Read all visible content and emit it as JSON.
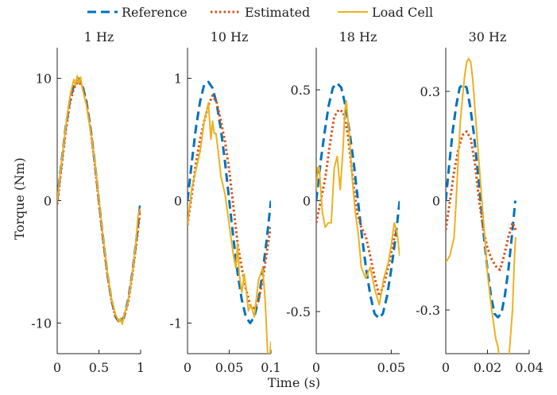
{
  "figure": {
    "ylabel": "Torque (Nm)",
    "xlabel": "Time (s)"
  },
  "legend": {
    "placement": "top-center",
    "entries": [
      {
        "label": "Reference",
        "color": "#0072BD",
        "style": "dashed"
      },
      {
        "label": "Estimated",
        "color": "#D95319",
        "style": "dotted"
      },
      {
        "label": "Load Cell",
        "color": "#EDB120",
        "style": "solid"
      }
    ]
  },
  "chart_data": [
    {
      "type": "line",
      "title": "1 Hz",
      "xlim": [
        0,
        1
      ],
      "ylim": [
        -12.5,
        12.5
      ],
      "xticks": [
        0,
        0.5,
        1
      ],
      "xtick_labels": [
        "0",
        "0.5",
        "1"
      ],
      "yticks": [
        -10,
        0,
        10
      ],
      "ytick_labels": [
        "-10",
        "0",
        "10"
      ],
      "series": [
        {
          "name": "Reference",
          "x": [
            0,
            0.05,
            0.1,
            0.15,
            0.2,
            0.25,
            0.3,
            0.35,
            0.4,
            0.45,
            0.5,
            0.55,
            0.6,
            0.65,
            0.7,
            0.75,
            0.8,
            0.85,
            0.9,
            0.95,
            1.0
          ],
          "y": [
            0,
            3.1,
            5.9,
            8.1,
            9.5,
            10.0,
            9.5,
            8.1,
            5.9,
            3.1,
            0,
            -3.1,
            -5.9,
            -8.1,
            -9.5,
            -10.0,
            -9.5,
            -8.1,
            -5.9,
            -3.1,
            0
          ]
        },
        {
          "name": "Estimated",
          "x": [
            0,
            0.05,
            0.1,
            0.15,
            0.2,
            0.25,
            0.3,
            0.35,
            0.4,
            0.45,
            0.5,
            0.55,
            0.6,
            0.65,
            0.7,
            0.75,
            0.8,
            0.85,
            0.9,
            0.95,
            1.0
          ],
          "y": [
            -0.3,
            2.7,
            5.6,
            7.9,
            9.2,
            9.7,
            9.4,
            8.0,
            5.8,
            3.0,
            -0.2,
            -3.3,
            -6.0,
            -8.2,
            -9.5,
            -9.9,
            -9.6,
            -8.3,
            -6.1,
            -3.4,
            -0.5
          ]
        },
        {
          "name": "Load Cell",
          "x": [
            0,
            0.04,
            0.08,
            0.12,
            0.16,
            0.2,
            0.22,
            0.24,
            0.26,
            0.28,
            0.3,
            0.35,
            0.4,
            0.45,
            0.5,
            0.55,
            0.6,
            0.65,
            0.7,
            0.74,
            0.76,
            0.78,
            0.8,
            0.85,
            0.9,
            0.94,
            0.97,
            1.0
          ],
          "y": [
            0,
            2.5,
            4.8,
            7.0,
            8.8,
            9.9,
            9.4,
            10.2,
            9.6,
            10.1,
            9.2,
            7.8,
            5.7,
            3.2,
            0.1,
            -3.0,
            -5.8,
            -8.0,
            -9.3,
            -9.9,
            -9.6,
            -10.1,
            -9.4,
            -8.2,
            -6.0,
            -3.6,
            -1.2,
            -0.6
          ]
        }
      ]
    },
    {
      "type": "line",
      "title": "10 Hz",
      "xlim": [
        0,
        0.1
      ],
      "ylim": [
        -1.25,
        1.25
      ],
      "xticks": [
        0,
        0.05,
        0.1
      ],
      "xtick_labels": [
        "0",
        "0.05",
        "0.1"
      ],
      "yticks": [
        -1,
        0,
        1
      ],
      "ytick_labels": [
        "-1",
        "0",
        "1"
      ],
      "series": [
        {
          "name": "Reference",
          "x": [
            0,
            0.005,
            0.01,
            0.015,
            0.02,
            0.025,
            0.03,
            0.035,
            0.04,
            0.045,
            0.05,
            0.055,
            0.06,
            0.065,
            0.07,
            0.075,
            0.08,
            0.085,
            0.09,
            0.095,
            0.1
          ],
          "y": [
            0,
            0.31,
            0.59,
            0.81,
            0.95,
            0.97,
            0.92,
            0.79,
            0.58,
            0.31,
            0,
            -0.31,
            -0.59,
            -0.81,
            -0.95,
            -1.0,
            -0.95,
            -0.81,
            -0.59,
            -0.31,
            0
          ]
        },
        {
          "name": "Estimated",
          "x": [
            0,
            0.005,
            0.01,
            0.015,
            0.02,
            0.025,
            0.03,
            0.035,
            0.04,
            0.045,
            0.05,
            0.055,
            0.06,
            0.065,
            0.07,
            0.075,
            0.08,
            0.085,
            0.09,
            0.095,
            0.1
          ],
          "y": [
            -0.2,
            0.05,
            0.3,
            0.5,
            0.65,
            0.78,
            0.86,
            0.8,
            0.65,
            0.48,
            0.25,
            -0.05,
            -0.35,
            -0.55,
            -0.72,
            -0.85,
            -0.88,
            -0.82,
            -0.65,
            -0.42,
            -0.2
          ]
        },
        {
          "name": "Load Cell",
          "x": [
            0,
            0.005,
            0.01,
            0.015,
            0.02,
            0.025,
            0.028,
            0.03,
            0.032,
            0.034,
            0.036,
            0.04,
            0.045,
            0.05,
            0.055,
            0.058,
            0.06,
            0.062,
            0.065,
            0.068,
            0.07,
            0.073,
            0.076,
            0.08,
            0.085,
            0.09,
            0.093,
            0.095,
            0.097,
            0.1
          ],
          "y": [
            -0.2,
            0.1,
            0.25,
            0.4,
            0.65,
            0.8,
            0.5,
            0.65,
            0.55,
            0.55,
            0.45,
            0.2,
            0.05,
            -0.2,
            -0.45,
            -0.55,
            -0.35,
            -0.6,
            -0.75,
            -0.6,
            -0.7,
            -0.9,
            -0.85,
            -0.95,
            -0.65,
            -0.55,
            -0.8,
            -1.1,
            -1.4,
            -1.15
          ]
        }
      ]
    },
    {
      "type": "line",
      "title": "18 Hz",
      "xlim": [
        0,
        0.0556
      ],
      "ylim": [
        -0.69,
        0.69
      ],
      "xticks": [
        0,
        0.05
      ],
      "xtick_labels": [
        "0",
        "0.05"
      ],
      "yticks": [
        -0.5,
        0,
        0.5
      ],
      "ytick_labels": [
        "-0.5",
        "0",
        "0.5"
      ],
      "series": [
        {
          "name": "Reference",
          "x": [
            0,
            0.0028,
            0.0056,
            0.0083,
            0.0111,
            0.0139,
            0.0167,
            0.0194,
            0.0222,
            0.025,
            0.0278,
            0.0306,
            0.0333,
            0.0361,
            0.0389,
            0.0417,
            0.0444,
            0.0472,
            0.05,
            0.0528,
            0.0556
          ],
          "y": [
            0,
            0.17,
            0.31,
            0.43,
            0.51,
            0.53,
            0.51,
            0.43,
            0.31,
            0.17,
            0,
            -0.17,
            -0.31,
            -0.43,
            -0.51,
            -0.53,
            -0.51,
            -0.43,
            -0.31,
            -0.17,
            0
          ]
        },
        {
          "name": "Estimated",
          "x": [
            0,
            0.003,
            0.006,
            0.009,
            0.012,
            0.015,
            0.018,
            0.021,
            0.024,
            0.027,
            0.03,
            0.033,
            0.036,
            0.039,
            0.042,
            0.045,
            0.048,
            0.051,
            0.0535
          ],
          "y": [
            -0.1,
            0.0,
            0.1,
            0.25,
            0.38,
            0.41,
            0.4,
            0.3,
            0.12,
            -0.05,
            -0.12,
            -0.16,
            -0.25,
            -0.35,
            -0.43,
            -0.38,
            -0.3,
            -0.2,
            -0.12
          ]
        },
        {
          "name": "Load Cell",
          "x": [
            0,
            0.001,
            0.002,
            0.004,
            0.006,
            0.008,
            0.01,
            0.012,
            0.014,
            0.016,
            0.018,
            0.019,
            0.02,
            0.022,
            0.024,
            0.026,
            0.028,
            0.03,
            0.033,
            0.036,
            0.039,
            0.042,
            0.045,
            0.048,
            0.05,
            0.052,
            0.054,
            0.0556
          ],
          "y": [
            0.05,
            0.15,
            0.15,
            -0.05,
            -0.12,
            -0.1,
            -0.1,
            0.15,
            0.2,
            0.05,
            0.25,
            0.4,
            0.45,
            0.3,
            0.1,
            -0.05,
            -0.15,
            -0.3,
            -0.35,
            -0.3,
            -0.4,
            -0.47,
            -0.35,
            -0.28,
            -0.2,
            -0.1,
            -0.15,
            -0.25
          ]
        }
      ]
    },
    {
      "type": "line",
      "title": "30 Hz",
      "xlim": [
        0,
        0.04
      ],
      "ylim": [
        -0.42,
        0.42
      ],
      "xticks": [
        0,
        0.02,
        0.04
      ],
      "xtick_labels": [
        "0",
        "0.02",
        "0.04"
      ],
      "yticks": [
        -0.3,
        0,
        0.3
      ],
      "ytick_labels": [
        "-0.3",
        "0",
        "0.3"
      ],
      "series": [
        {
          "name": "Reference",
          "x": [
            0,
            0.00167,
            0.00333,
            0.005,
            0.00667,
            0.00833,
            0.01,
            0.01167,
            0.01333,
            0.015,
            0.01667,
            0.01833,
            0.02,
            0.02167,
            0.02333,
            0.025,
            0.02667,
            0.02833,
            0.03,
            0.03167,
            0.03333
          ],
          "y": [
            0,
            0.1,
            0.19,
            0.26,
            0.31,
            0.32,
            0.31,
            0.26,
            0.19,
            0.1,
            0,
            -0.1,
            -0.19,
            -0.26,
            -0.31,
            -0.32,
            -0.31,
            -0.26,
            -0.19,
            -0.1,
            0
          ]
        },
        {
          "name": "Estimated",
          "x": [
            0,
            0.002,
            0.004,
            0.006,
            0.008,
            0.01,
            0.012,
            0.014,
            0.016,
            0.018,
            0.02,
            0.022,
            0.024,
            0.026,
            0.028,
            0.03,
            0.032,
            0.0335
          ],
          "y": [
            -0.08,
            0.0,
            0.08,
            0.14,
            0.18,
            0.19,
            0.17,
            0.1,
            0.0,
            -0.08,
            -0.13,
            -0.16,
            -0.18,
            -0.19,
            -0.15,
            -0.1,
            -0.06,
            -0.08
          ]
        },
        {
          "name": "Load Cell",
          "x": [
            0,
            0.002,
            0.004,
            0.005,
            0.006,
            0.007,
            0.008,
            0.009,
            0.01,
            0.011,
            0.012,
            0.013,
            0.014,
            0.016,
            0.018,
            0.02,
            0.022,
            0.024,
            0.025,
            0.026,
            0.028,
            0.03,
            0.032,
            0.033,
            0.0335
          ],
          "y": [
            -0.17,
            -0.15,
            -0.1,
            0.0,
            0.12,
            0.22,
            0.28,
            0.34,
            0.38,
            0.39,
            0.38,
            0.33,
            0.25,
            0.1,
            -0.05,
            -0.2,
            -0.3,
            -0.38,
            -0.4,
            -0.45,
            -0.5,
            -0.45,
            -0.3,
            -0.15,
            -0.1
          ]
        }
      ]
    }
  ]
}
